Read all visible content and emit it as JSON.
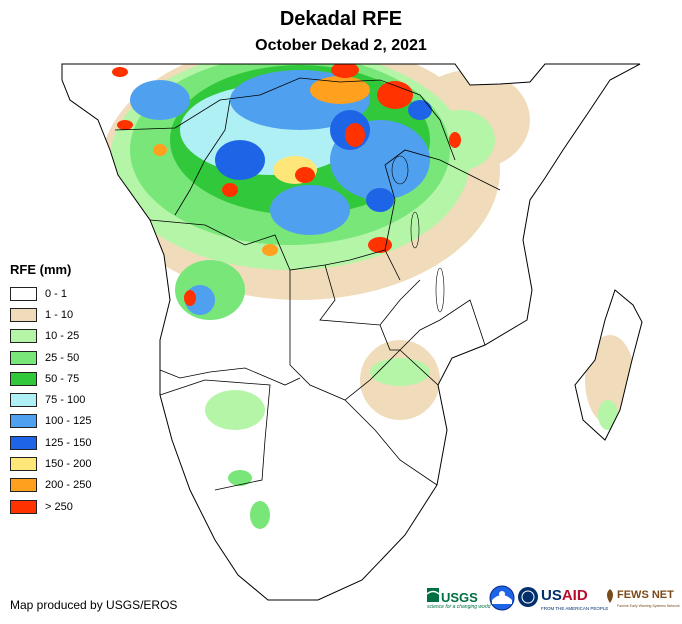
{
  "title": "Dekadal RFE",
  "subtitle": "October Dekad 2, 2021",
  "legend": {
    "title": "RFE (mm)",
    "items": [
      {
        "label": "0 - 1",
        "color": "#ffffff"
      },
      {
        "label": "1 - 10",
        "color": "#f0dcba"
      },
      {
        "label": "10 - 25",
        "color": "#b4f5a8"
      },
      {
        "label": "25 - 50",
        "color": "#78e678"
      },
      {
        "label": "50 - 75",
        "color": "#32c83c"
      },
      {
        "label": "75 - 100",
        "color": "#aff0f5"
      },
      {
        "label": "100 - 125",
        "color": "#50a0f0"
      },
      {
        "label": "125 - 150",
        "color": "#1e64e6"
      },
      {
        "label": "150 - 200",
        "color": "#ffe678"
      },
      {
        "label": "200 - 250",
        "color": "#ffa01e"
      },
      {
        "label": "> 250",
        "color": "#ff3200"
      }
    ]
  },
  "credit": "Map produced by USGS/EROS",
  "logos": {
    "usgs": "USGS",
    "usgs_tagline": "science for a changing world",
    "noaa": "noaa-logo",
    "usaid": "USAID",
    "usaid_tagline": "FROM THE AMERICAN PEOPLE",
    "fewsnet": "FEWS NET",
    "fewsnet_tagline": "Famine Early Warning Systems Network"
  },
  "colors": {
    "land_outline": "#000000",
    "background": "#ffffff"
  }
}
